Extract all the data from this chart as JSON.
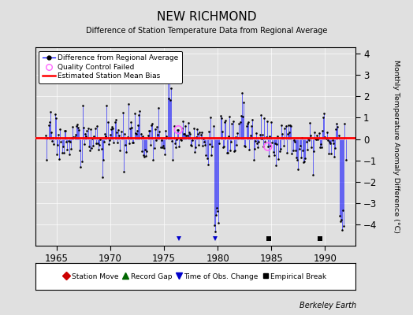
{
  "title": "NEW RICHMOND",
  "subtitle": "Difference of Station Temperature Data from Regional Average",
  "ylabel": "Monthly Temperature Anomaly Difference (°C)",
  "xlabel_years": [
    1965,
    1970,
    1975,
    1980,
    1985,
    1990
  ],
  "xlim": [
    1963.0,
    1992.8
  ],
  "ylim": [
    -5,
    4.3
  ],
  "yticks": [
    -4,
    -3,
    -2,
    -1,
    0,
    1,
    2,
    3,
    4
  ],
  "mean_bias": 0.05,
  "bg_color": "#e0e0e0",
  "plot_bg": "#e0e0e0",
  "line_color": "#0000ff",
  "dot_color": "#000000",
  "bias_color": "#ff0000",
  "qc_color": "#ff66ff",
  "station_move_color": "#cc0000",
  "record_gap_color": "#006600",
  "tobs_color": "#0000cc",
  "emp_break_color": "#000000",
  "watermark": "Berkeley Earth",
  "tobs_changes": [
    1976.42,
    1979.75
  ],
  "empirical_breaks": [
    1984.75,
    1989.5
  ],
  "qc_failed_indices": [
    148,
    248
  ],
  "seed": 17
}
